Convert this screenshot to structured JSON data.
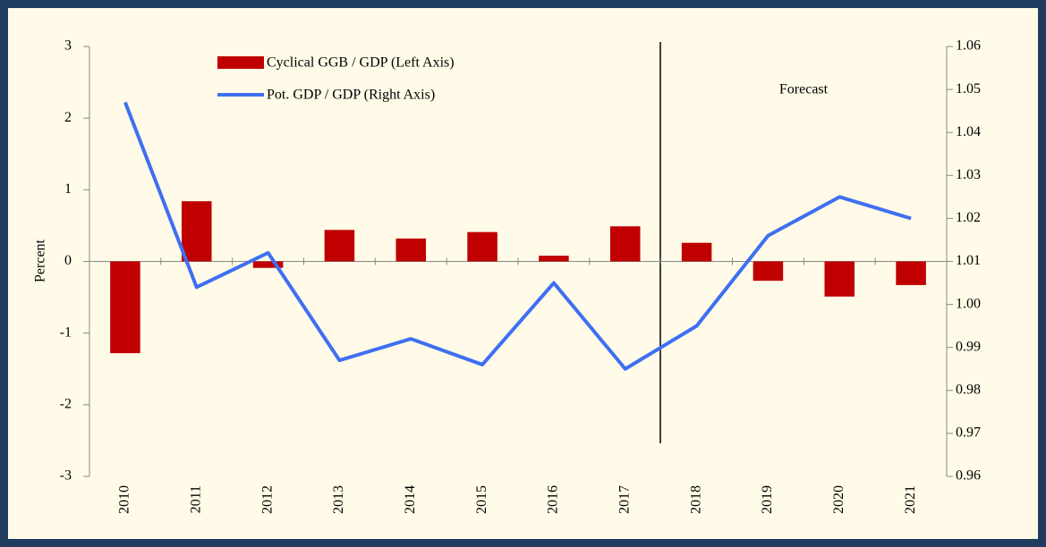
{
  "chart_data": {
    "type": "bar_line",
    "y_label": "Percent",
    "annotation": "Forecast",
    "categories": [
      "2010",
      "2011",
      "2012",
      "2013",
      "2014",
      "2015",
      "2016",
      "2017",
      "2018",
      "2019",
      "2020",
      "2021"
    ],
    "series": [
      {
        "name": "Cyclical GGB / GDP (Left Axis)",
        "type": "bar",
        "color": "#c00000",
        "values": [
          -1.28,
          0.84,
          -0.09,
          0.44,
          0.32,
          0.41,
          0.08,
          0.49,
          0.26,
          -0.27,
          -0.49,
          -0.33
        ]
      },
      {
        "name": "Pot. GDP / GDP (Right Axis)",
        "type": "line",
        "axis": "y2",
        "color": "#3f6ff2",
        "values": [
          1.047,
          1.004,
          1.012,
          0.987,
          0.992,
          0.986,
          1.005,
          0.985,
          0.995,
          1.016,
          1.025,
          1.02
        ]
      }
    ],
    "ylim": [
      -3,
      3
    ],
    "yticks": [
      -3,
      -2,
      -1,
      0,
      1,
      2,
      3
    ],
    "y2lim": [
      0.96,
      1.06
    ],
    "y2ticks": [
      0.96,
      0.97,
      0.98,
      0.99,
      {
        "value": 1,
        "label": "1.00"
      },
      1.01,
      1.02,
      1.03,
      1.04,
      1.05,
      1.06
    ]
  }
}
